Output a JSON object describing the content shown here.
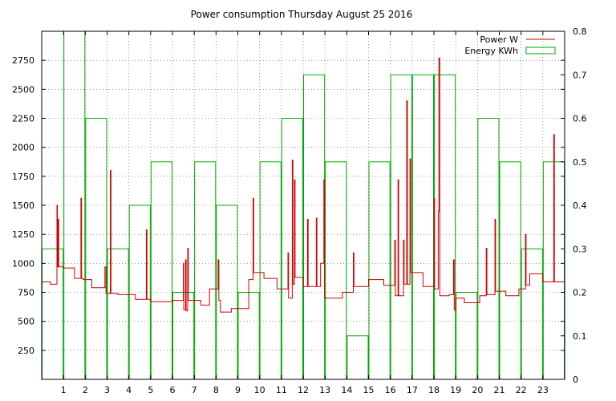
{
  "chart_data": {
    "type": "line",
    "title": "Power consumption Thursday August 25 2016",
    "xlabel": "",
    "ylabel": "",
    "y2label": "",
    "xlim": [
      0,
      24
    ],
    "ylim": [
      0,
      3000
    ],
    "y2lim": [
      0,
      0.8
    ],
    "x_ticks": [
      "1",
      "2",
      "3",
      "4",
      "5",
      "6",
      "7",
      "8",
      "9",
      "10",
      "11",
      "12",
      "13",
      "14",
      "15",
      "16",
      "17",
      "18",
      "19",
      "20",
      "21",
      "22",
      "23"
    ],
    "y_ticks": [
      "250",
      "500",
      "750",
      "1000",
      "1250",
      "1500",
      "1750",
      "2000",
      "2250",
      "2500",
      "2750"
    ],
    "y2_ticks": [
      "0",
      "0.1",
      "0.2",
      "0.3",
      "0.4",
      "0.5",
      "0.6",
      "0.7",
      "0.8"
    ],
    "grid": true,
    "legend_position": "top-right",
    "colors": {
      "power": "#cc0000",
      "energy": "#00aa00",
      "grid": "#555555"
    },
    "series": [
      {
        "name": "Power W",
        "axis": "left",
        "style": "line",
        "points": [
          [
            0.0,
            840
          ],
          [
            0.4,
            840
          ],
          [
            0.4,
            820
          ],
          [
            0.7,
            820
          ],
          [
            0.7,
            1500
          ],
          [
            0.72,
            1500
          ],
          [
            0.72,
            970
          ],
          [
            0.75,
            970
          ],
          [
            0.75,
            1380
          ],
          [
            0.78,
            1380
          ],
          [
            0.78,
            970
          ],
          [
            1.0,
            970
          ],
          [
            1.0,
            960
          ],
          [
            1.5,
            960
          ],
          [
            1.5,
            870
          ],
          [
            1.8,
            870
          ],
          [
            1.8,
            1560
          ],
          [
            1.83,
            1560
          ],
          [
            1.83,
            870
          ],
          [
            1.9,
            870
          ],
          [
            1.9,
            860
          ],
          [
            2.3,
            860
          ],
          [
            2.3,
            790
          ],
          [
            2.9,
            790
          ],
          [
            2.9,
            970
          ],
          [
            2.95,
            970
          ],
          [
            2.95,
            740
          ],
          [
            3.15,
            740
          ],
          [
            3.15,
            1800
          ],
          [
            3.18,
            1800
          ],
          [
            3.18,
            740
          ],
          [
            3.5,
            740
          ],
          [
            3.5,
            730
          ],
          [
            4.3,
            730
          ],
          [
            4.3,
            690
          ],
          [
            4.8,
            690
          ],
          [
            4.8,
            1290
          ],
          [
            4.83,
            1290
          ],
          [
            4.83,
            690
          ],
          [
            5.0,
            690
          ],
          [
            5.0,
            670
          ],
          [
            6.0,
            670
          ],
          [
            6.0,
            680
          ],
          [
            6.5,
            680
          ],
          [
            6.5,
            1000
          ],
          [
            6.52,
            1000
          ],
          [
            6.52,
            600
          ],
          [
            6.6,
            600
          ],
          [
            6.6,
            1030
          ],
          [
            6.63,
            1030
          ],
          [
            6.63,
            590
          ],
          [
            6.7,
            590
          ],
          [
            6.7,
            1130
          ],
          [
            6.73,
            1130
          ],
          [
            6.73,
            680
          ],
          [
            7.3,
            680
          ],
          [
            7.3,
            640
          ],
          [
            7.7,
            640
          ],
          [
            7.7,
            780
          ],
          [
            8.1,
            780
          ],
          [
            8.1,
            1030
          ],
          [
            8.13,
            1030
          ],
          [
            8.13,
            680
          ],
          [
            8.2,
            680
          ],
          [
            8.2,
            580
          ],
          [
            8.7,
            580
          ],
          [
            8.7,
            610
          ],
          [
            9.5,
            610
          ],
          [
            9.5,
            860
          ],
          [
            9.7,
            860
          ],
          [
            9.7,
            1560
          ],
          [
            9.73,
            1560
          ],
          [
            9.73,
            920
          ],
          [
            10.2,
            920
          ],
          [
            10.2,
            870
          ],
          [
            10.8,
            870
          ],
          [
            10.8,
            780
          ],
          [
            11.3,
            780
          ],
          [
            11.3,
            1090
          ],
          [
            11.33,
            1090
          ],
          [
            11.33,
            700
          ],
          [
            11.5,
            700
          ],
          [
            11.5,
            1890
          ],
          [
            11.53,
            1890
          ],
          [
            11.53,
            820
          ],
          [
            11.6,
            820
          ],
          [
            11.6,
            1720
          ],
          [
            11.63,
            1720
          ],
          [
            11.63,
            880
          ],
          [
            12.0,
            880
          ],
          [
            12.0,
            800
          ],
          [
            12.2,
            800
          ],
          [
            12.2,
            1380
          ],
          [
            12.23,
            1380
          ],
          [
            12.23,
            800
          ],
          [
            12.6,
            800
          ],
          [
            12.6,
            1390
          ],
          [
            12.63,
            1390
          ],
          [
            12.63,
            800
          ],
          [
            12.8,
            800
          ],
          [
            12.8,
            1000
          ],
          [
            12.95,
            1000
          ],
          [
            12.95,
            1720
          ],
          [
            12.98,
            1720
          ],
          [
            12.98,
            700
          ],
          [
            13.8,
            700
          ],
          [
            13.8,
            750
          ],
          [
            14.3,
            750
          ],
          [
            14.3,
            1090
          ],
          [
            14.33,
            1090
          ],
          [
            14.33,
            800
          ],
          [
            15.0,
            800
          ],
          [
            15.0,
            860
          ],
          [
            15.7,
            860
          ],
          [
            15.7,
            810
          ],
          [
            16.2,
            810
          ],
          [
            16.2,
            1200
          ],
          [
            16.23,
            1200
          ],
          [
            16.23,
            720
          ],
          [
            16.35,
            720
          ],
          [
            16.35,
            1720
          ],
          [
            16.38,
            1720
          ],
          [
            16.38,
            720
          ],
          [
            16.6,
            720
          ],
          [
            16.6,
            1200
          ],
          [
            16.63,
            1200
          ],
          [
            16.63,
            820
          ],
          [
            16.75,
            820
          ],
          [
            16.75,
            2400
          ],
          [
            16.78,
            2400
          ],
          [
            16.78,
            820
          ],
          [
            16.9,
            820
          ],
          [
            16.9,
            1900
          ],
          [
            16.93,
            1900
          ],
          [
            16.93,
            920
          ],
          [
            17.5,
            920
          ],
          [
            17.5,
            800
          ],
          [
            18.0,
            800
          ],
          [
            18.0,
            1560
          ],
          [
            18.03,
            1560
          ],
          [
            18.03,
            780
          ],
          [
            18.2,
            780
          ],
          [
            18.2,
            1450
          ],
          [
            18.23,
            1450
          ],
          [
            18.23,
            2770
          ],
          [
            18.27,
            2770
          ],
          [
            18.27,
            720
          ],
          [
            18.7,
            720
          ],
          [
            18.7,
            730
          ],
          [
            18.9,
            730
          ],
          [
            18.9,
            1030
          ],
          [
            18.93,
            1030
          ],
          [
            18.93,
            600
          ],
          [
            19.0,
            600
          ],
          [
            19.0,
            700
          ],
          [
            19.4,
            700
          ],
          [
            19.4,
            660
          ],
          [
            20.1,
            660
          ],
          [
            20.1,
            720
          ],
          [
            20.4,
            720
          ],
          [
            20.4,
            1130
          ],
          [
            20.43,
            1130
          ],
          [
            20.43,
            730
          ],
          [
            20.8,
            730
          ],
          [
            20.8,
            1380
          ],
          [
            20.83,
            1380
          ],
          [
            20.83,
            760
          ],
          [
            21.3,
            760
          ],
          [
            21.3,
            720
          ],
          [
            21.9,
            720
          ],
          [
            21.9,
            780
          ],
          [
            22.2,
            780
          ],
          [
            22.2,
            1250
          ],
          [
            22.23,
            1250
          ],
          [
            22.23,
            810
          ],
          [
            22.4,
            810
          ],
          [
            22.4,
            910
          ],
          [
            23.0,
            910
          ],
          [
            23.0,
            840
          ],
          [
            23.5,
            840
          ],
          [
            23.5,
            2110
          ],
          [
            23.53,
            2110
          ],
          [
            23.53,
            840
          ],
          [
            24.0,
            840
          ]
        ]
      },
      {
        "name": "Energy KWh",
        "axis": "right",
        "style": "histeps",
        "x": [
          0,
          1,
          2,
          3,
          4,
          5,
          6,
          7,
          8,
          9,
          10,
          11,
          12,
          13,
          14,
          15,
          16,
          17,
          18,
          19,
          20,
          21,
          22,
          23
        ],
        "values": [
          0.3,
          0.8,
          0.6,
          0.3,
          0.4,
          0.5,
          0.2,
          0.5,
          0.4,
          0.2,
          0.5,
          0.6,
          0.7,
          0.5,
          0.1,
          0.5,
          0.7,
          0.7,
          0.7,
          0.2,
          0.6,
          0.5,
          0.3,
          0.5
        ]
      }
    ]
  }
}
